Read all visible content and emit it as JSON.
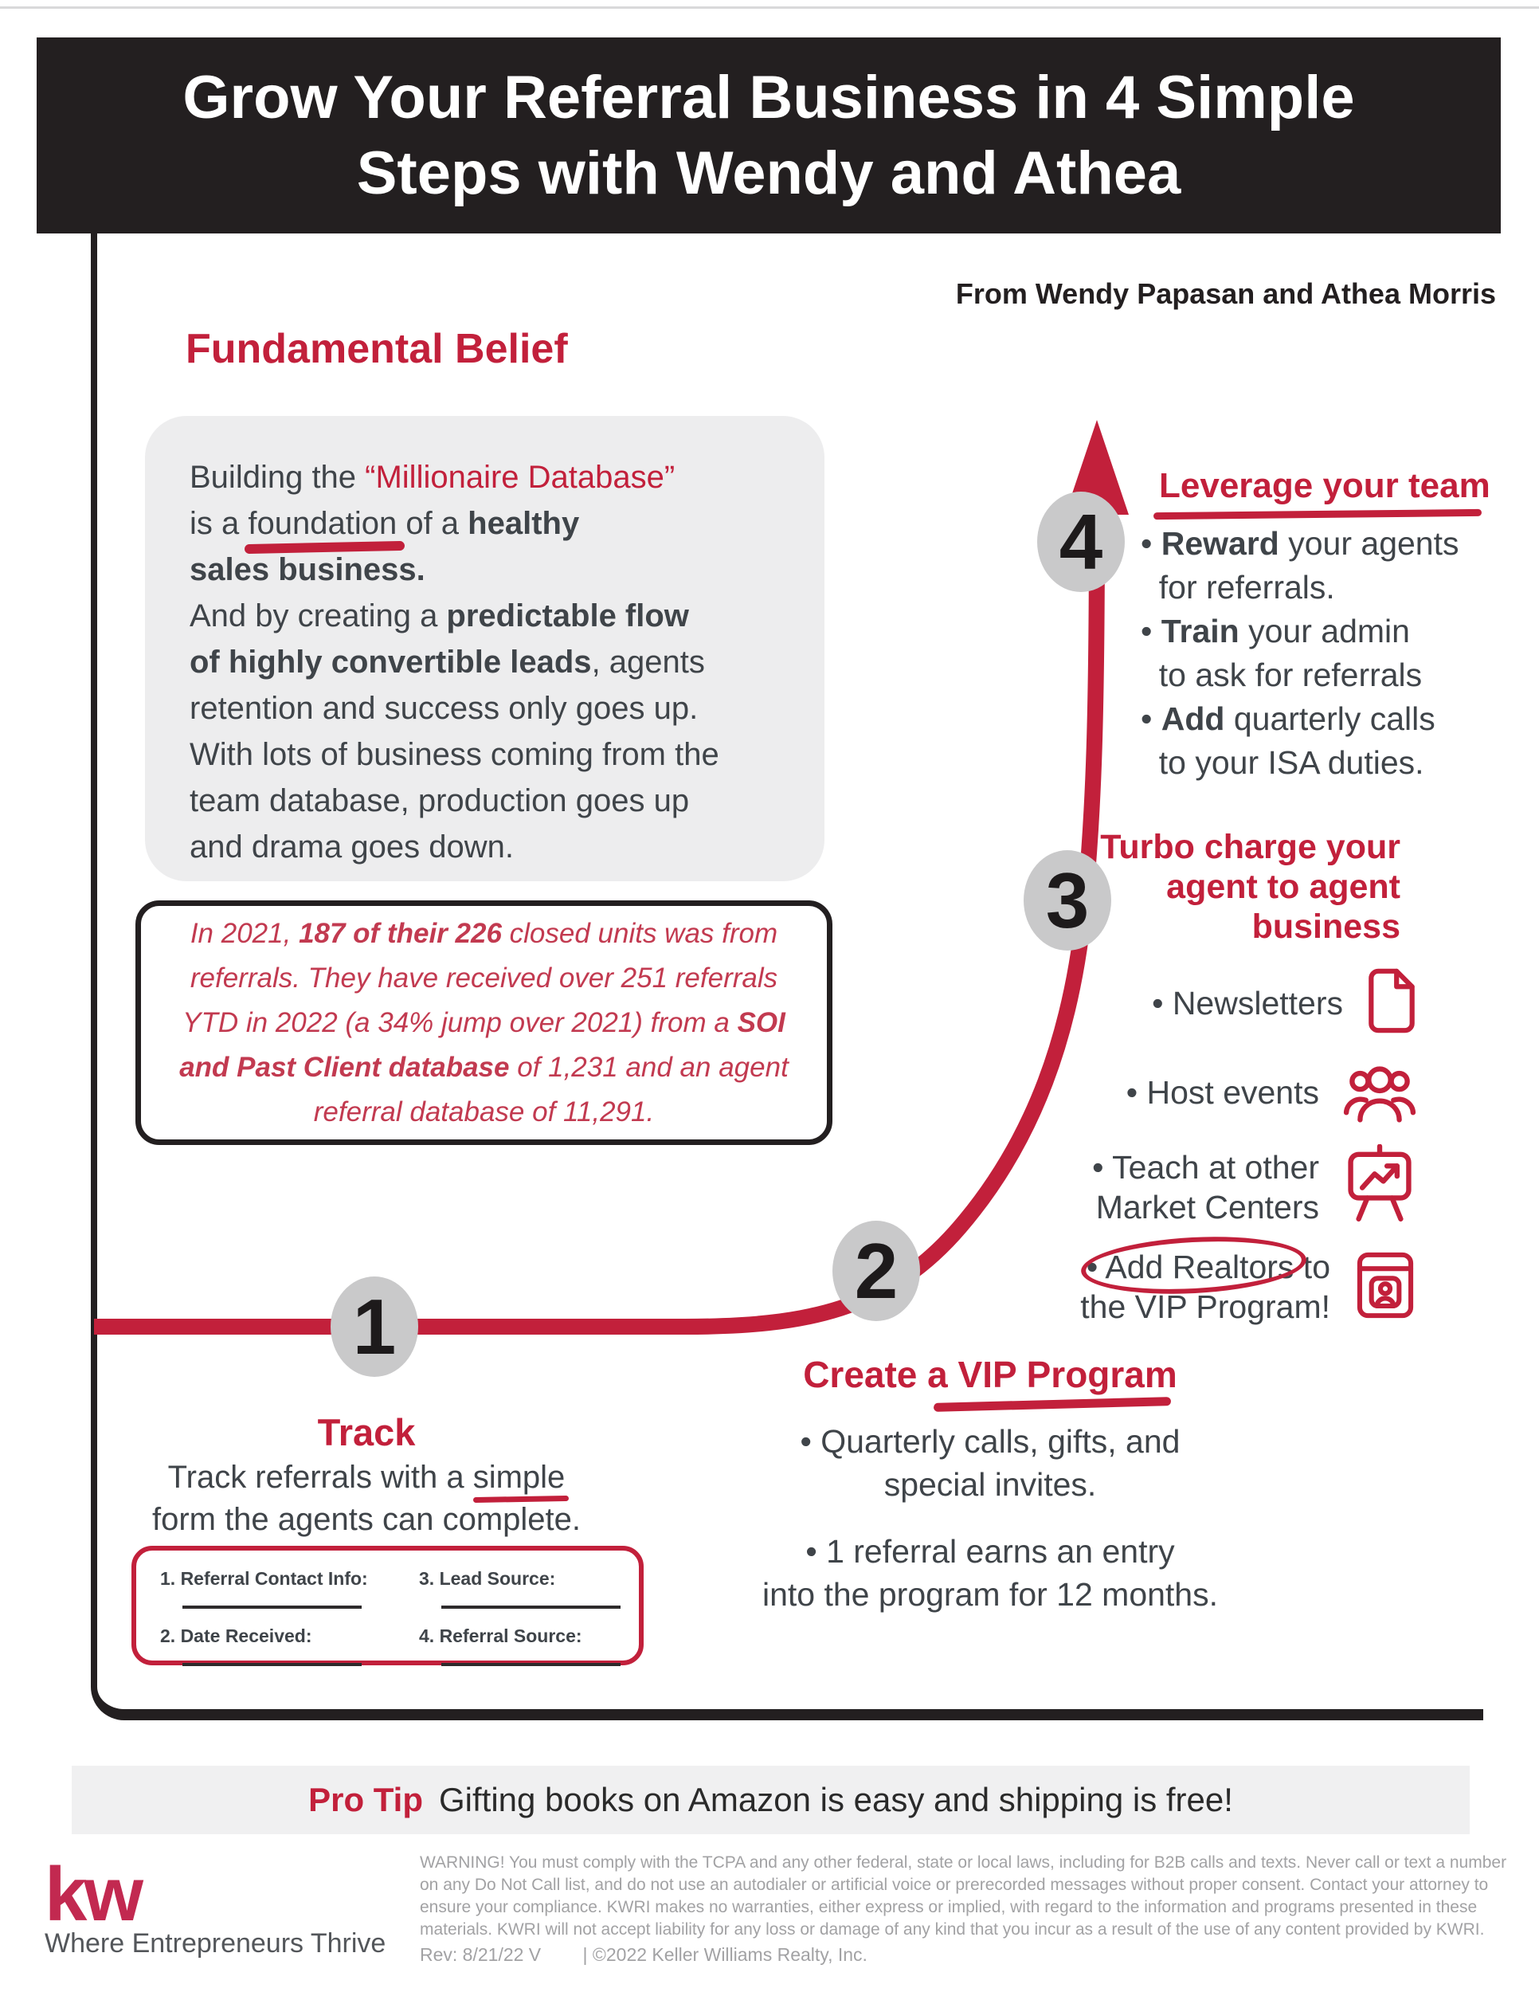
{
  "header": {
    "title_line1": "Grow Your Referral Business in 4 Simple",
    "title_line2": "Steps with Wendy and Athea",
    "byline": "From Wendy Papasan and Athea Morris"
  },
  "belief": {
    "heading": "Fundamental Belief",
    "body": [
      {
        "t": "Building the "
      },
      {
        "t": "“Millionaire Database”",
        "red": true
      },
      {
        "br": true
      },
      {
        "t": "is a "
      },
      {
        "t": "foundation",
        "u": "marker"
      },
      {
        "t": " of a "
      },
      {
        "t": "healthy",
        "b": true
      },
      {
        "br": true
      },
      {
        "t": "sales business.",
        "b": true
      },
      {
        "br": true
      },
      {
        "t": "And by creating a "
      },
      {
        "t": "predictable flow",
        "b": true
      },
      {
        "br": true
      },
      {
        "t": "of highly convertible leads",
        "b": true
      },
      {
        "t": ", agents"
      },
      {
        "br": true
      },
      {
        "t": "retention and success only goes up."
      },
      {
        "br": true
      },
      {
        "t": "With lots of business coming from the"
      },
      {
        "br": true
      },
      {
        "t": "team database, production goes up"
      },
      {
        "br": true
      },
      {
        "t": "and drama goes down."
      }
    ]
  },
  "stat": {
    "body": [
      {
        "t": "In 2021, "
      },
      {
        "t": "187 of their 226",
        "b": true
      },
      {
        "t": " closed units was from"
      },
      {
        "br": true
      },
      {
        "t": "referrals. They have received over 251 referrals"
      },
      {
        "br": true
      },
      {
        "t": "YTD in 2022 (a 34% jump over 2021) from a "
      },
      {
        "t": "SOI",
        "b": true
      },
      {
        "br": true
      },
      {
        "t": "and Past Client database",
        "b": true
      },
      {
        "t": " of 1,231 and an agent"
      },
      {
        "br": true
      },
      {
        "t": "referral database of 11,291."
      }
    ]
  },
  "step1": {
    "number": "1",
    "title": "Track",
    "body": [
      {
        "t": "Track referrals with a "
      },
      {
        "t": "simple",
        "u": "thin"
      },
      {
        "br": true
      },
      {
        "t": "form the agents can complete."
      }
    ],
    "form_fields": [
      "1. Referral Contact Info:",
      "2. Date Received:",
      "3. Lead Source:",
      "4. Referral Source:"
    ]
  },
  "step2": {
    "number": "2",
    "title": "Create a VIP Program",
    "bullet1": [
      {
        "t": "• Quarterly calls, gifts, and"
      },
      {
        "br": true
      },
      {
        "t": "special invites."
      }
    ],
    "bullet2": [
      {
        "t": "• 1 referral earns an entry"
      },
      {
        "br": true
      },
      {
        "t": "into the program for 12 months."
      }
    ]
  },
  "step3": {
    "number": "3",
    "title_line1": "Turbo charge your",
    "title_line2": "agent to agent",
    "title_line3": "business",
    "items": [
      {
        "icon": "document-icon",
        "label": [
          {
            "t": "• Newsletters"
          }
        ]
      },
      {
        "icon": "people-icon",
        "label": [
          {
            "t": "• Host events"
          }
        ]
      },
      {
        "icon": "presentation-chart-icon",
        "label": [
          {
            "t": "• Teach at other"
          },
          {
            "br": true
          },
          {
            "t": "Market Centers"
          }
        ]
      },
      {
        "icon": "id-card-icon",
        "label": [
          {
            "t": "• "
          },
          {
            "t": "Add Realtors",
            "circle": true
          },
          {
            "t": " to"
          },
          {
            "br": true
          },
          {
            "t": "the VIP Program!"
          }
        ]
      }
    ]
  },
  "step4": {
    "number": "4",
    "title": "Leverage your team",
    "bullets": [
      {
        "t": "• "
      },
      {
        "t": "Reward",
        "b": true
      },
      {
        "t": " your agents"
      },
      {
        "br": true
      },
      {
        "t": "  for referrals."
      },
      {
        "br": true
      },
      {
        "t": "• "
      },
      {
        "t": "Train",
        "b": true
      },
      {
        "t": " your admin"
      },
      {
        "br": true
      },
      {
        "t": "  to ask for referrals"
      },
      {
        "br": true
      },
      {
        "t": "• "
      },
      {
        "t": "Add",
        "b": true
      },
      {
        "t": " quarterly calls"
      },
      {
        "br": true
      },
      {
        "t": "  to your ISA duties."
      }
    ]
  },
  "protip": {
    "label": "Pro Tip",
    "text": "Gifting books on Amazon is easy and shipping is free!"
  },
  "footer": {
    "logo_text": "kw",
    "tagline": "Where Entrepreneurs Thrive",
    "warning": "WARNING! You must comply with the TCPA and any other federal, state or local laws, including for B2B calls and texts. Never call or text a number on any Do Not Call list, and do not use an autodialer or artificial voice or prerecorded messages without proper consent. Contact your attorney to ensure your compliance. KWRI makes no warranties, either express or implied, with regard to the information and programs presented in these materials. KWRI will not accept liability for any loss or damage of any kind that you incur as a result of the use of any content provided by KWRI.",
    "rev": "Rev: 8/21/22 V",
    "copyright": "| ©2022 Keller Williams Realty, Inc."
  },
  "colors": {
    "red": "#C2203B",
    "stat_red": "#C23A50",
    "ink_black": "#231F20",
    "body_gray": "#3F4449",
    "circle_gray": "#C9C9CA",
    "panel_gray": "#EDEDEE",
    "protip_gray": "#F0F0F1",
    "footer_gray": "#A2A2A4",
    "kw_logo_red": "#C22950"
  }
}
